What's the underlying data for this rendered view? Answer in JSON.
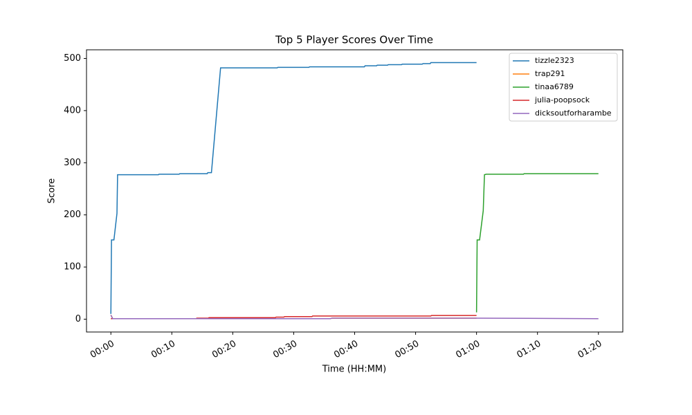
{
  "chart_data": {
    "type": "line",
    "title": "Top 5 Player Scores Over Time",
    "xlabel": "Time (HH:MM)",
    "ylabel": "Score",
    "xlim": [
      -4,
      84
    ],
    "ylim": [
      -24.6,
      516.6
    ],
    "xticks": [
      {
        "value": 0,
        "label": "00:00"
      },
      {
        "value": 10,
        "label": "00:10"
      },
      {
        "value": 20,
        "label": "00:20"
      },
      {
        "value": 30,
        "label": "00:30"
      },
      {
        "value": 40,
        "label": "00:40"
      },
      {
        "value": 50,
        "label": "00:50"
      },
      {
        "value": 60,
        "label": "01:00"
      },
      {
        "value": 70,
        "label": "01:10"
      },
      {
        "value": 80,
        "label": "01:20"
      }
    ],
    "yticks": [
      0,
      100,
      200,
      300,
      400,
      500
    ],
    "legend": "upper right",
    "series": [
      {
        "name": "tizzle2323",
        "color": "#1f77b4",
        "x": [
          0,
          0.1,
          0.5,
          1.0,
          1.1,
          7.8,
          7.9,
          11.2,
          11.3,
          15.8,
          15.9,
          16.5,
          18.0,
          27.3,
          27.4,
          32.5,
          32.6,
          41.6,
          41.7,
          43.6,
          43.7,
          45.4,
          45.5,
          47.7,
          47.8,
          51.1,
          51.2,
          52.4,
          52.5,
          60
        ],
        "values": [
          10,
          152,
          152,
          203,
          277,
          277,
          278,
          278,
          279,
          279,
          281,
          281,
          482,
          482,
          483,
          483,
          484,
          484,
          486,
          486,
          487,
          487,
          488,
          488,
          489,
          489,
          490,
          490,
          492,
          492
        ]
      },
      {
        "name": "trap291",
        "color": "#ff7f0e",
        "x": [
          0,
          0.3,
          36,
          36.3,
          60
        ],
        "values": [
          8,
          1,
          1,
          2,
          2
        ]
      },
      {
        "name": "tinaa6789",
        "color": "#2ca02c",
        "x": [
          60,
          60.1,
          60.5,
          61.1,
          61.3,
          61.6,
          67.7,
          67.8,
          80
        ],
        "values": [
          13,
          152,
          152,
          208,
          277,
          278,
          278,
          279,
          279
        ]
      },
      {
        "name": "julia-poopsock",
        "color": "#d62728",
        "x": [
          0,
          14,
          14.1,
          16,
          16.1,
          27,
          27.1,
          28.4,
          28.5,
          33,
          33.1,
          52.5,
          52.6,
          60
        ],
        "values": [
          1,
          1,
          2,
          2,
          3,
          3,
          4,
          4,
          5,
          5,
          6,
          6,
          7,
          7
        ]
      },
      {
        "name": "dicksoutforharambe",
        "color": "#9467bd",
        "x": [
          0,
          0.3,
          36,
          36.3,
          60,
          80
        ],
        "values": [
          8,
          1,
          1,
          2,
          2,
          1
        ]
      }
    ]
  }
}
